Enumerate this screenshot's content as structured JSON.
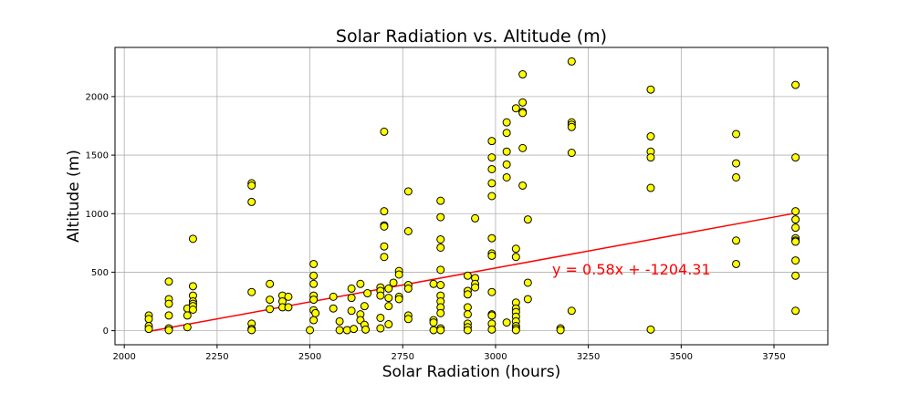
{
  "chart_data": {
    "type": "scatter",
    "title": "Solar Radiation vs. Altitude (m)",
    "xlabel": "Solar Radiation (hours)",
    "ylabel": "Altitude (m)",
    "xlim": [
      1975,
      3895
    ],
    "ylim": [
      -120,
      2420
    ],
    "x_ticks": [
      2000,
      2250,
      2500,
      2750,
      3000,
      3250,
      3500,
      3750
    ],
    "y_ticks": [
      0,
      500,
      1000,
      1500,
      2000
    ],
    "grid": true,
    "marker_color": "#ffff00",
    "marker_edge": "#000000",
    "regression": {
      "slope": 0.58,
      "intercept": -1204.31,
      "x_range": [
        2066,
        3808
      ],
      "color": "#ff0000",
      "equation": "y = 0.58x + -1204.31"
    },
    "points": [
      [
        2066,
        130
      ],
      [
        2066,
        100
      ],
      [
        2066,
        40
      ],
      [
        2066,
        15
      ],
      [
        2120,
        420
      ],
      [
        2120,
        270
      ],
      [
        2120,
        230
      ],
      [
        2120,
        130
      ],
      [
        2120,
        20
      ],
      [
        2120,
        5
      ],
      [
        2170,
        190
      ],
      [
        2170,
        130
      ],
      [
        2170,
        30
      ],
      [
        2185,
        785
      ],
      [
        2185,
        380
      ],
      [
        2185,
        300
      ],
      [
        2185,
        250
      ],
      [
        2185,
        230
      ],
      [
        2185,
        210
      ],
      [
        2185,
        180
      ],
      [
        2343,
        1260
      ],
      [
        2343,
        1240
      ],
      [
        2343,
        1100
      ],
      [
        2343,
        330
      ],
      [
        2343,
        60
      ],
      [
        2343,
        15
      ],
      [
        2343,
        5
      ],
      [
        2392,
        400
      ],
      [
        2392,
        265
      ],
      [
        2392,
        185
      ],
      [
        2426,
        300
      ],
      [
        2426,
        250
      ],
      [
        2426,
        200
      ],
      [
        2442,
        290
      ],
      [
        2442,
        200
      ],
      [
        2500,
        5
      ],
      [
        2510,
        570
      ],
      [
        2510,
        470
      ],
      [
        2510,
        400
      ],
      [
        2510,
        300
      ],
      [
        2510,
        265
      ],
      [
        2510,
        175
      ],
      [
        2510,
        90
      ],
      [
        2515,
        150
      ],
      [
        2563,
        290
      ],
      [
        2563,
        190
      ],
      [
        2580,
        80
      ],
      [
        2580,
        5
      ],
      [
        2600,
        5
      ],
      [
        2612,
        360
      ],
      [
        2612,
        280
      ],
      [
        2612,
        170
      ],
      [
        2618,
        15
      ],
      [
        2636,
        400
      ],
      [
        2636,
        140
      ],
      [
        2636,
        90
      ],
      [
        2647,
        210
      ],
      [
        2647,
        50
      ],
      [
        2650,
        10
      ],
      [
        2655,
        320
      ],
      [
        2690,
        370
      ],
      [
        2690,
        340
      ],
      [
        2690,
        300
      ],
      [
        2690,
        110
      ],
      [
        2690,
        20
      ],
      [
        2700,
        1700
      ],
      [
        2700,
        1020
      ],
      [
        2700,
        900
      ],
      [
        2700,
        890
      ],
      [
        2700,
        720
      ],
      [
        2700,
        630
      ],
      [
        2712,
        360
      ],
      [
        2712,
        280
      ],
      [
        2712,
        210
      ],
      [
        2712,
        55
      ],
      [
        2725,
        410
      ],
      [
        2740,
        510
      ],
      [
        2740,
        480
      ],
      [
        2740,
        290
      ],
      [
        2740,
        270
      ],
      [
        2765,
        1190
      ],
      [
        2765,
        850
      ],
      [
        2765,
        390
      ],
      [
        2765,
        360
      ],
      [
        2765,
        130
      ],
      [
        2765,
        100
      ],
      [
        2833,
        400
      ],
      [
        2833,
        90
      ],
      [
        2833,
        70
      ],
      [
        2833,
        5
      ],
      [
        2852,
        1110
      ],
      [
        2852,
        970
      ],
      [
        2852,
        780
      ],
      [
        2852,
        710
      ],
      [
        2852,
        520
      ],
      [
        2852,
        390
      ],
      [
        2852,
        300
      ],
      [
        2852,
        250
      ],
      [
        2852,
        200
      ],
      [
        2852,
        150
      ],
      [
        2852,
        20
      ],
      [
        2852,
        5
      ],
      [
        2925,
        470
      ],
      [
        2925,
        340
      ],
      [
        2925,
        310
      ],
      [
        2925,
        200
      ],
      [
        2925,
        140
      ],
      [
        2925,
        60
      ],
      [
        2925,
        30
      ],
      [
        2925,
        5
      ],
      [
        2945,
        960
      ],
      [
        2945,
        450
      ],
      [
        2945,
        400
      ],
      [
        2945,
        370
      ],
      [
        2990,
        1620
      ],
      [
        2990,
        1480
      ],
      [
        2990,
        1380
      ],
      [
        2990,
        1260
      ],
      [
        2990,
        1150
      ],
      [
        2990,
        790
      ],
      [
        2990,
        660
      ],
      [
        2990,
        640
      ],
      [
        2990,
        330
      ],
      [
        2990,
        140
      ],
      [
        2990,
        130
      ],
      [
        2990,
        60
      ],
      [
        2990,
        10
      ],
      [
        3030,
        1780
      ],
      [
        3030,
        1690
      ],
      [
        3030,
        1530
      ],
      [
        3030,
        1420
      ],
      [
        3030,
        1310
      ],
      [
        3030,
        70
      ],
      [
        3055,
        1900
      ],
      [
        3055,
        700
      ],
      [
        3055,
        630
      ],
      [
        3055,
        240
      ],
      [
        3055,
        190
      ],
      [
        3055,
        160
      ],
      [
        3055,
        120
      ],
      [
        3055,
        80
      ],
      [
        3055,
        40
      ],
      [
        3055,
        20
      ],
      [
        3055,
        5
      ],
      [
        3073,
        2190
      ],
      [
        3073,
        1950
      ],
      [
        3073,
        1870
      ],
      [
        3073,
        1860
      ],
      [
        3073,
        1560
      ],
      [
        3073,
        1240
      ],
      [
        3087,
        950
      ],
      [
        3087,
        410
      ],
      [
        3087,
        270
      ],
      [
        3175,
        20
      ],
      [
        3175,
        5
      ],
      [
        3205,
        2300
      ],
      [
        3205,
        1780
      ],
      [
        3205,
        1760
      ],
      [
        3205,
        1740
      ],
      [
        3205,
        1520
      ],
      [
        3205,
        170
      ],
      [
        3418,
        2060
      ],
      [
        3418,
        1660
      ],
      [
        3418,
        1530
      ],
      [
        3418,
        1480
      ],
      [
        3418,
        1220
      ],
      [
        3418,
        10
      ],
      [
        3648,
        1680
      ],
      [
        3648,
        1430
      ],
      [
        3648,
        1310
      ],
      [
        3648,
        770
      ],
      [
        3648,
        570
      ],
      [
        3808,
        2100
      ],
      [
        3808,
        1480
      ],
      [
        3808,
        1020
      ],
      [
        3808,
        950
      ],
      [
        3808,
        880
      ],
      [
        3808,
        790
      ],
      [
        3808,
        770
      ],
      [
        3808,
        760
      ],
      [
        3808,
        600
      ],
      [
        3808,
        470
      ],
      [
        3808,
        170
      ]
    ]
  }
}
